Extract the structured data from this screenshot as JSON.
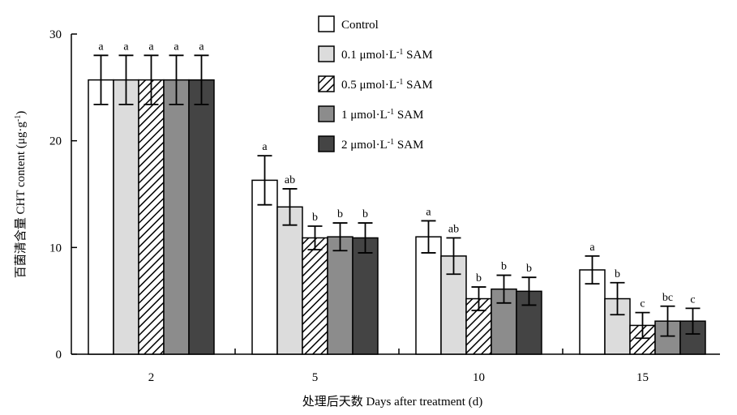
{
  "chart_data": {
    "type": "bar",
    "xlabel": "处理后天数 Days after treatment (d)",
    "ylabel_main": "百菌清含量 CHT content (μg·g",
    "ylabel_sup": "-1",
    "ylabel_end": ")",
    "ylim": [
      0,
      30
    ],
    "yticks": [
      "0",
      "10",
      "20",
      "30"
    ],
    "categories": [
      "2",
      "5",
      "10",
      "15"
    ],
    "legend_position": "top-right",
    "series": [
      {
        "name_main": "Control",
        "name_sup": "",
        "name_end": "",
        "fill": "#ffffff",
        "pattern": false,
        "values": [
          25.7,
          16.3,
          11.0,
          7.9
        ],
        "errors": [
          2.3,
          2.3,
          1.5,
          1.3
        ],
        "labels": [
          "a",
          "a",
          "a",
          "a"
        ]
      },
      {
        "name_main": "0.1 μmol·L",
        "name_sup": "-1",
        "name_end": " SAM",
        "fill": "#dcdcdc",
        "pattern": false,
        "values": [
          25.7,
          13.8,
          9.2,
          5.2
        ],
        "errors": [
          2.3,
          1.7,
          1.7,
          1.5
        ],
        "labels": [
          "a",
          "ab",
          "ab",
          "b"
        ]
      },
      {
        "name_main": "0.5 μmol·L",
        "name_sup": "-1",
        "name_end": " SAM",
        "fill": "hatch",
        "pattern": true,
        "values": [
          25.7,
          10.9,
          5.2,
          2.7
        ],
        "errors": [
          2.3,
          1.1,
          1.1,
          1.2
        ],
        "labels": [
          "a",
          "b",
          "b",
          "c"
        ]
      },
      {
        "name_main": "1 μmol·L",
        "name_sup": "-1",
        "name_end": " SAM",
        "fill": "#8c8c8c",
        "pattern": false,
        "values": [
          25.7,
          11.0,
          6.1,
          3.1
        ],
        "errors": [
          2.3,
          1.3,
          1.3,
          1.4
        ],
        "labels": [
          "a",
          "b",
          "b",
          "bc"
        ]
      },
      {
        "name_main": "2 μmol·L",
        "name_sup": "-1",
        "name_end": " SAM",
        "fill": "#444444",
        "pattern": false,
        "values": [
          25.7,
          10.9,
          5.9,
          3.1
        ],
        "errors": [
          2.3,
          1.4,
          1.3,
          1.2
        ],
        "labels": [
          "a",
          "b",
          "b",
          "c"
        ]
      }
    ]
  }
}
